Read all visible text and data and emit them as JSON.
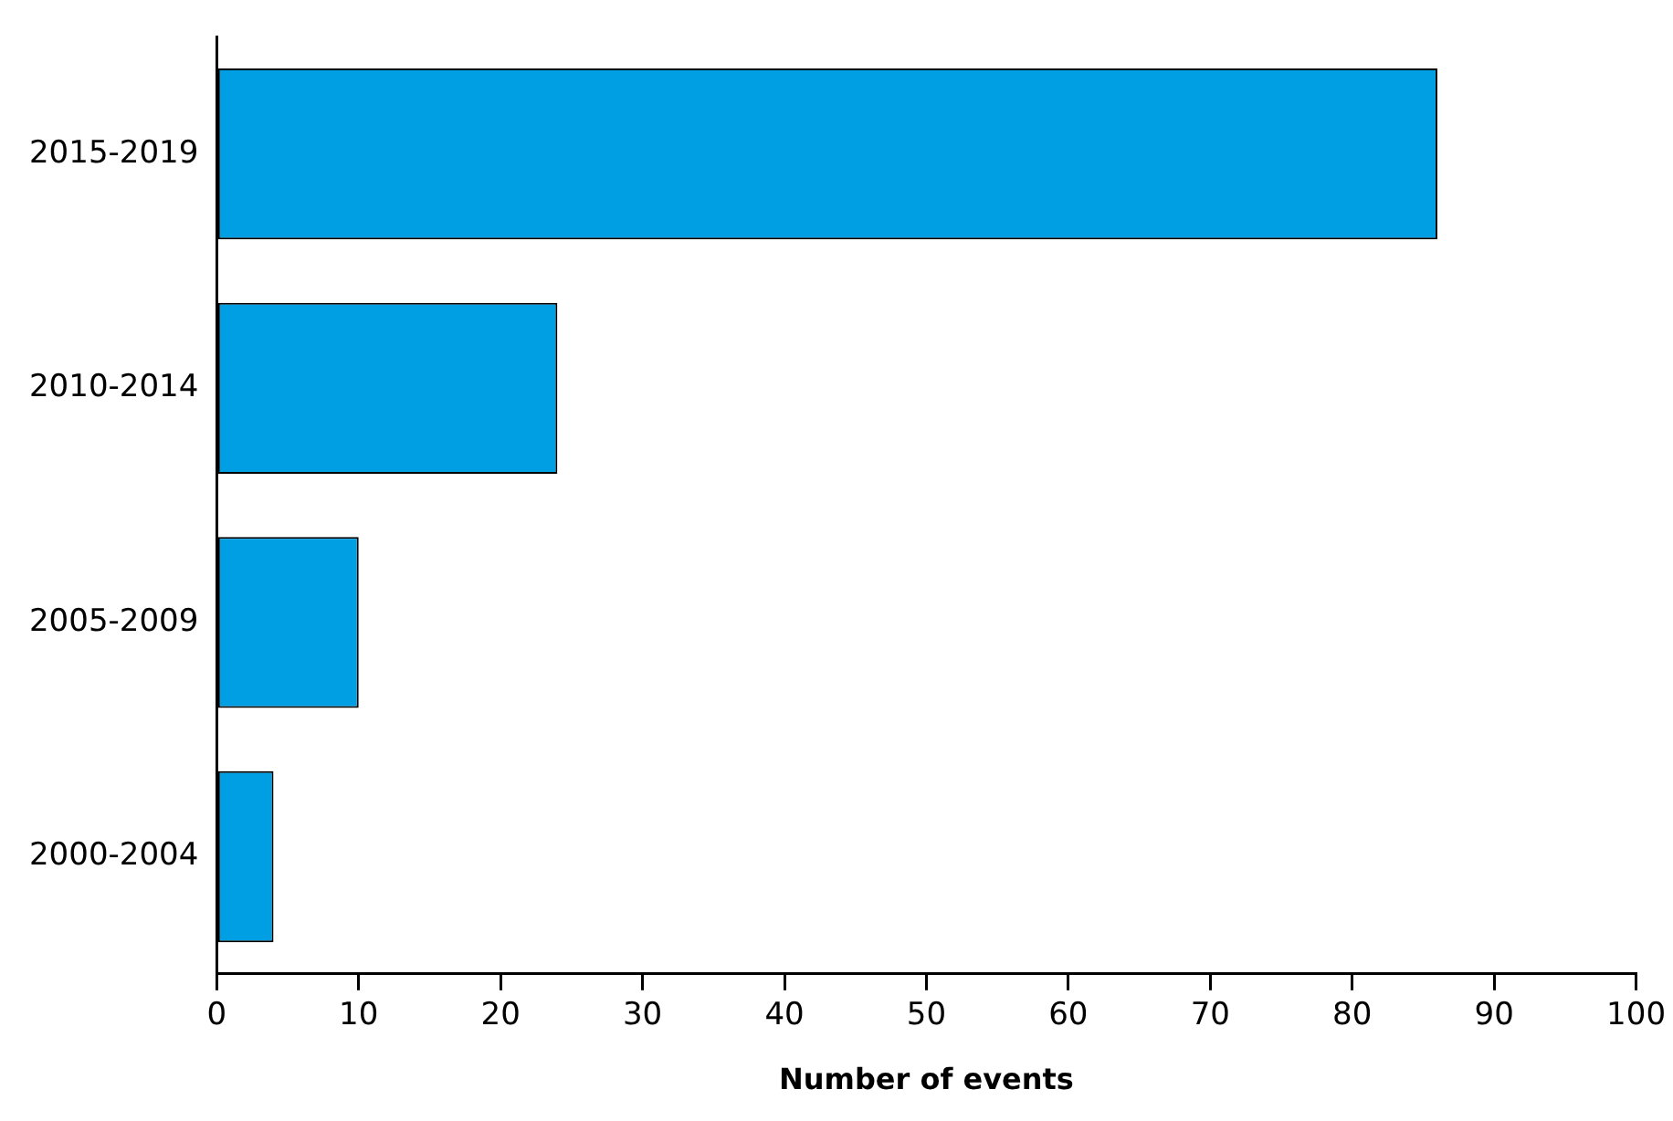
{
  "chart_data": {
    "type": "bar",
    "orientation": "horizontal",
    "xlabel": "Number of events",
    "categories": [
      "2015-2019",
      "2010-2014",
      "2005-2009",
      "2000-2004"
    ],
    "values": [
      86,
      24,
      10,
      4
    ],
    "color": "#009fe3",
    "xlim": [
      0,
      100
    ],
    "xticks": [
      0,
      10,
      20,
      30,
      40,
      50,
      60,
      70,
      80,
      90,
      100
    ],
    "grid": false,
    "legend": false
  }
}
